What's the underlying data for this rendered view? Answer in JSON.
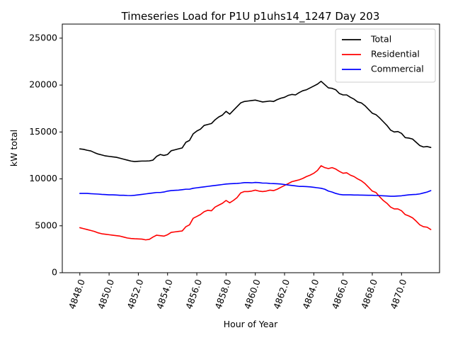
{
  "chart_data": {
    "type": "line",
    "title": "Timeseries Load for P1U p1uhs14_1247  Day 203",
    "xlabel": "Hour of Year",
    "ylabel": "kW total",
    "xlim": [
      4846.8,
      4872.6
    ],
    "ylim": [
      0,
      26500
    ],
    "xticks": [
      4848,
      4850,
      4852,
      4854,
      4856,
      4858,
      4860,
      4862,
      4864,
      4866,
      4868,
      4870
    ],
    "xtick_labels": [
      "4848.0",
      "4850.0",
      "4852.0",
      "4854.0",
      "4856.0",
      "4858.0",
      "4860.0",
      "4862.0",
      "4864.0",
      "4866.0",
      "4868.0",
      "4870.0"
    ],
    "yticks": [
      0,
      5000,
      10000,
      15000,
      20000,
      25000
    ],
    "ytick_labels": [
      "0",
      "5000",
      "10000",
      "15000",
      "20000",
      "25000"
    ],
    "grid": false,
    "legend_position": "top-right",
    "x_start": 4848,
    "x_step": 0.25,
    "series": [
      {
        "name": "Total",
        "color": "#000000",
        "values": [
          13200,
          13150,
          13050,
          12980,
          12800,
          12650,
          12550,
          12450,
          12400,
          12350,
          12300,
          12200,
          12100,
          12000,
          11900,
          11850,
          11880,
          11900,
          11900,
          11920,
          12000,
          12400,
          12600,
          12500,
          12600,
          13000,
          13100,
          13200,
          13300,
          13900,
          14100,
          14800,
          15100,
          15300,
          15700,
          15800,
          15900,
          16300,
          16600,
          16800,
          17200,
          16900,
          17300,
          17700,
          18100,
          18250,
          18300,
          18350,
          18400,
          18300,
          18200,
          18250,
          18300,
          18250,
          18450,
          18600,
          18700,
          18900,
          19000,
          18950,
          19200,
          19400,
          19500,
          19700,
          19900,
          20100,
          20400,
          20050,
          19700,
          19650,
          19500,
          19100,
          18950,
          18950,
          18700,
          18500,
          18200,
          18100,
          17800,
          17400,
          17000,
          16850,
          16500,
          16100,
          15700,
          15200,
          15000,
          15050,
          14850,
          14400,
          14350,
          14250,
          13900,
          13550,
          13400,
          13450,
          13350
        ]
      },
      {
        "name": "Residential",
        "color": "#ff0000",
        "values": [
          4800,
          4700,
          4600,
          4500,
          4400,
          4250,
          4150,
          4100,
          4050,
          4000,
          3950,
          3900,
          3800,
          3700,
          3650,
          3620,
          3600,
          3580,
          3500,
          3550,
          3800,
          4000,
          3950,
          3900,
          4050,
          4300,
          4350,
          4400,
          4450,
          4900,
          5100,
          5800,
          6000,
          6200,
          6500,
          6650,
          6600,
          7000,
          7200,
          7400,
          7700,
          7450,
          7700,
          8000,
          8500,
          8650,
          8650,
          8700,
          8800,
          8700,
          8650,
          8700,
          8800,
          8750,
          8900,
          9100,
          9300,
          9500,
          9700,
          9800,
          9900,
          10050,
          10250,
          10400,
          10600,
          10900,
          11400,
          11200,
          11100,
          11200,
          11050,
          10800,
          10600,
          10650,
          10400,
          10250,
          10000,
          9800,
          9500,
          9100,
          8700,
          8550,
          8100,
          7700,
          7400,
          7000,
          6800,
          6800,
          6600,
          6200,
          6050,
          5850,
          5500,
          5100,
          4900,
          4850,
          4600
        ]
      },
      {
        "name": "Commercial",
        "color": "#0000ff",
        "values": [
          8450,
          8450,
          8450,
          8420,
          8400,
          8380,
          8350,
          8330,
          8300,
          8300,
          8280,
          8250,
          8250,
          8230,
          8220,
          8250,
          8300,
          8350,
          8400,
          8450,
          8500,
          8550,
          8550,
          8600,
          8700,
          8750,
          8780,
          8800,
          8850,
          8900,
          8900,
          9000,
          9050,
          9100,
          9150,
          9200,
          9250,
          9300,
          9350,
          9400,
          9450,
          9480,
          9500,
          9520,
          9550,
          9600,
          9600,
          9580,
          9620,
          9600,
          9550,
          9550,
          9520,
          9500,
          9480,
          9450,
          9400,
          9350,
          9300,
          9250,
          9200,
          9200,
          9180,
          9150,
          9100,
          9050,
          9000,
          8900,
          8700,
          8600,
          8450,
          8350,
          8300,
          8300,
          8300,
          8280,
          8280,
          8270,
          8260,
          8250,
          8250,
          8230,
          8220,
          8200,
          8180,
          8150,
          8150,
          8180,
          8200,
          8250,
          8300,
          8330,
          8350,
          8400,
          8500,
          8600,
          8750
        ]
      }
    ]
  }
}
